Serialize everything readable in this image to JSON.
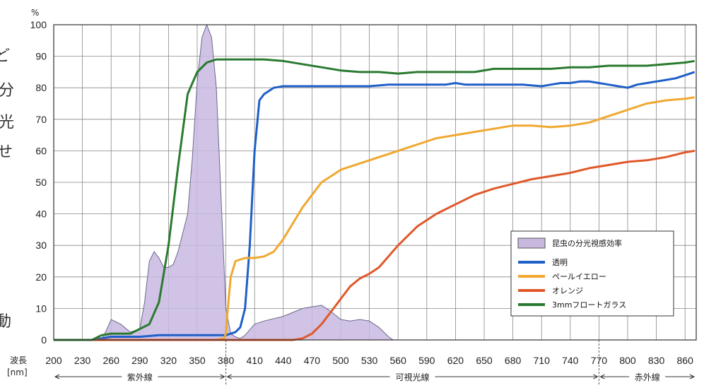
{
  "side_text": [
    "ど",
    "分",
    "光",
    "せ",
    "動"
  ],
  "chart_data": {
    "type": "line",
    "ylabel": "%",
    "xlabel_line1": "波長",
    "xlabel_line2": "[nm]",
    "xlim": [
      200,
      870
    ],
    "ylim": [
      0,
      100
    ],
    "x_ticks": [
      200,
      230,
      260,
      290,
      320,
      350,
      380,
      410,
      440,
      470,
      500,
      530,
      560,
      590,
      620,
      650,
      680,
      710,
      740,
      770,
      800,
      830,
      860
    ],
    "y_ticks": [
      0,
      10,
      20,
      30,
      40,
      50,
      60,
      70,
      80,
      90,
      100
    ],
    "grid": true,
    "legend_position": "lower-right",
    "regions": [
      {
        "label": "紫外線",
        "from": 200,
        "to": 380
      },
      {
        "label": "可視光線",
        "from": 380,
        "to": 770
      },
      {
        "label": "赤外線",
        "from": 770,
        "to": 870
      }
    ],
    "area_series": {
      "name": "昆虫の分光視感効率",
      "color": "#c8b8e0",
      "x": [
        250,
        255,
        260,
        270,
        280,
        290,
        295,
        300,
        305,
        310,
        315,
        320,
        325,
        330,
        340,
        345,
        350,
        355,
        360,
        365,
        370,
        375,
        380,
        385,
        390,
        395,
        400,
        410,
        420,
        440,
        460,
        480,
        490,
        500,
        510,
        520,
        530,
        540,
        550,
        555
      ],
      "y": [
        0,
        3,
        6.5,
        5,
        2.5,
        3.5,
        12,
        25,
        28,
        26,
        23,
        23,
        24,
        28,
        40,
        58,
        82,
        96,
        100,
        96,
        80,
        45,
        10,
        2,
        1,
        0.5,
        1.5,
        5,
        6,
        7.5,
        10,
        11,
        9,
        6.5,
        6,
        6.5,
        6,
        4,
        1,
        0
      ]
    },
    "series": [
      {
        "name": "透明",
        "color": "#1f5fc8",
        "x": [
          200,
          240,
          260,
          280,
          290,
          310,
          340,
          370,
          380,
          390,
          395,
          400,
          405,
          410,
          415,
          420,
          430,
          440,
          450,
          470,
          500,
          530,
          550,
          560,
          570,
          580,
          590,
          610,
          620,
          630,
          640,
          650,
          660,
          670,
          690,
          710,
          720,
          730,
          740,
          750,
          760,
          770,
          780,
          790,
          800,
          810,
          820,
          830,
          840,
          850,
          860,
          870
        ],
        "y": [
          0,
          0,
          1,
          1,
          1,
          1.5,
          1.5,
          1.5,
          1.5,
          2.5,
          4,
          10,
          30,
          60,
          76,
          78,
          80,
          80.5,
          80.5,
          80.5,
          80.5,
          80.5,
          81,
          81,
          81,
          81,
          81,
          81,
          81.5,
          81,
          81,
          81,
          81,
          81,
          81,
          80.5,
          81,
          81.5,
          81.5,
          82,
          82,
          81.5,
          81,
          80.5,
          80,
          81,
          81.5,
          82,
          82.5,
          83,
          84,
          85
        ]
      },
      {
        "name": "ペールイエロー",
        "color": "#f0a830",
        "x": [
          200,
          370,
          378,
          380,
          382,
          385,
          390,
          400,
          410,
          420,
          430,
          440,
          450,
          460,
          470,
          480,
          490,
          500,
          510,
          520,
          530,
          540,
          550,
          560,
          570,
          580,
          590,
          600,
          620,
          640,
          660,
          680,
          700,
          720,
          740,
          760,
          780,
          800,
          820,
          840,
          860,
          870
        ],
        "y": [
          0,
          0,
          0.5,
          2,
          10,
          20,
          25,
          26,
          26,
          26.5,
          28,
          32,
          37,
          42,
          46,
          50,
          52,
          54,
          55,
          56,
          57,
          58,
          59,
          60,
          61,
          62,
          63,
          64,
          65,
          66,
          67,
          68,
          68,
          67.5,
          68,
          69,
          71,
          73,
          75,
          76,
          76.5,
          77
        ]
      },
      {
        "name": "オレンジ",
        "color": "#e0582a",
        "x": [
          200,
          450,
          460,
          470,
          480,
          490,
          500,
          510,
          520,
          530,
          540,
          560,
          580,
          600,
          620,
          640,
          660,
          680,
          700,
          720,
          740,
          760,
          780,
          800,
          820,
          840,
          860,
          870
        ],
        "y": [
          0,
          0,
          0.5,
          2,
          5,
          9,
          13,
          17,
          19.5,
          21,
          23,
          30,
          36,
          40,
          43,
          46,
          48,
          49.5,
          51,
          52,
          53,
          54.5,
          55.5,
          56.5,
          57,
          58,
          59.5,
          60
        ]
      },
      {
        "name": "3mmフロートガラス",
        "color": "#2a7a30",
        "x": [
          200,
          240,
          250,
          260,
          270,
          280,
          290,
          300,
          310,
          320,
          330,
          340,
          350,
          360,
          370,
          380,
          400,
          420,
          440,
          460,
          480,
          500,
          520,
          540,
          560,
          580,
          600,
          620,
          640,
          660,
          680,
          700,
          720,
          740,
          760,
          780,
          800,
          820,
          840,
          860,
          870
        ],
        "y": [
          0,
          0,
          1.5,
          2,
          2,
          2,
          3.5,
          5,
          12,
          30,
          55,
          78,
          85,
          88,
          89,
          89,
          89,
          89,
          88.5,
          87.5,
          86.5,
          85.5,
          85,
          85,
          84.5,
          85,
          85,
          85,
          85,
          86,
          86,
          86,
          86,
          86.5,
          86.5,
          87,
          87,
          87,
          87.5,
          88,
          88.5
        ]
      }
    ]
  }
}
